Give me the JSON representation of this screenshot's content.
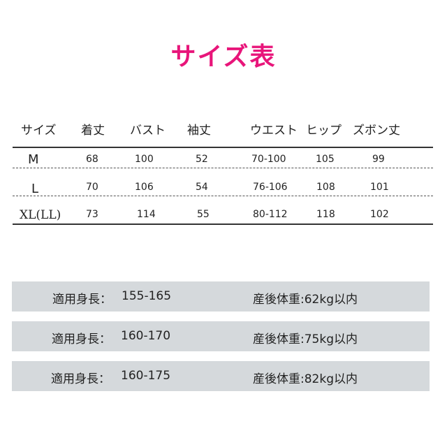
{
  "title": "サイズ表",
  "colors": {
    "title": "#e8157a",
    "box_background": "#d5d9dc"
  },
  "table": {
    "headers": [
      "サイズ",
      "着丈",
      "バスト",
      "袖丈",
      "ウエスト",
      "ヒップ",
      "ズボン丈"
    ],
    "rows": [
      [
        "M",
        "68",
        "100",
        "52",
        "70-100",
        "105",
        "99"
      ],
      [
        "L",
        "70",
        "106",
        "54",
        "76-106",
        "108",
        "101"
      ],
      [
        "XL(LL)",
        "73",
        "114",
        "55",
        "80-112",
        "118",
        "102"
      ]
    ]
  },
  "fit_boxes": [
    {
      "height_label": "適用身長：",
      "height_range": "155-165",
      "weight": "産後体重:62kg以内"
    },
    {
      "height_label": "適用身長：",
      "height_range": "160-170",
      "weight": "産後体重:75kg以内"
    },
    {
      "height_label": "適用身長：",
      "height_range": "160-175",
      "weight": "産後体重:82kg以内"
    }
  ]
}
